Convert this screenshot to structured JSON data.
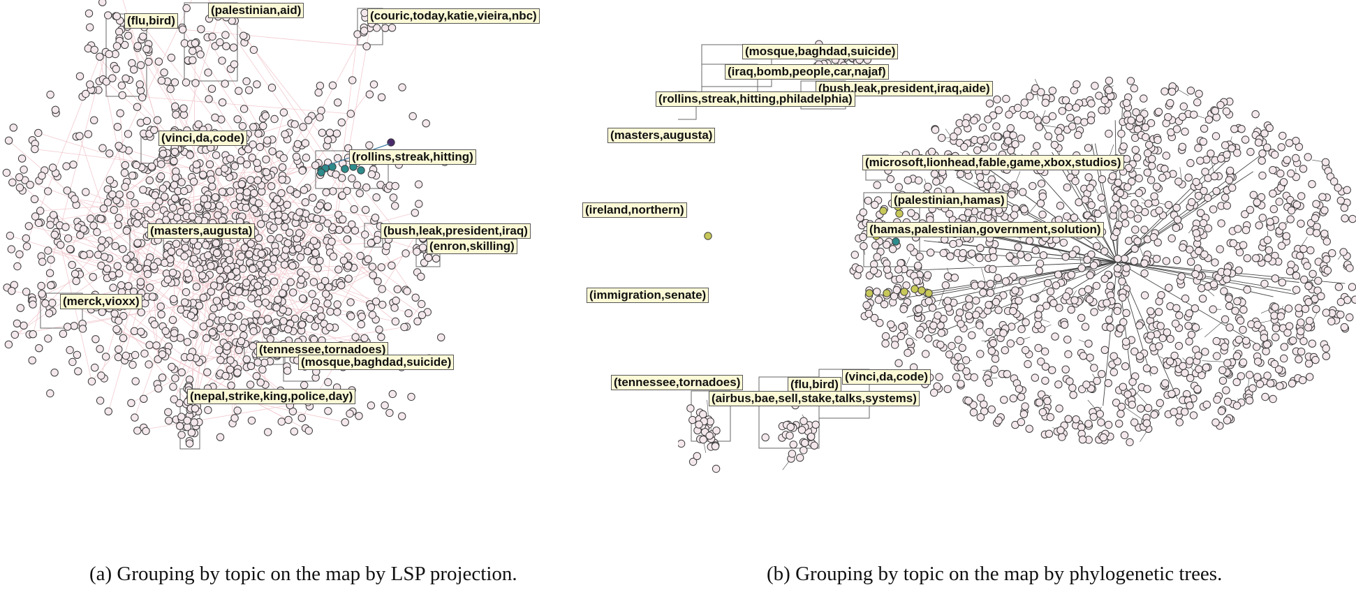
{
  "panels": [
    {
      "id": "a",
      "caption": "(a) Grouping by topic on the map by LSP projection.",
      "topic_labels": [
        "(flu,bird)",
        "(palestinian,aid)",
        "(couric,today,katie,vieira,nbc)",
        "(vinci,da,code)",
        "(rollins,streak,hitting)",
        "(masters,augusta)",
        "(bush,leak,president,iraq)",
        "(enron,skilling)",
        "(merck,vioxx)",
        "(tennessee,tornadoes)",
        "(mosque,baghdad,suicide)",
        "(nepal,strike,king,police,day)"
      ]
    },
    {
      "id": "b",
      "caption": "(b) Grouping by topic on the map by phylogenetic trees.",
      "topic_labels": [
        "(mosque,baghdad,suicide)",
        "(iraq,bomb,people,car,najaf)",
        "(bush,leak,president,iraq,aide)",
        "(rollins,streak,hitting,philadelphia)",
        "(masters,augusta)",
        "(microsoft,lionhead,fable,game,xbox,studios)",
        "(palestinian,hamas)",
        "(ireland,northern)",
        "(hamas,palestinian,government,solution)",
        "(immigration,senate)",
        "(tennessee,tornadoes)",
        "(flu,bird)",
        "(vinci,da,code)",
        "(airbus,bae,sell,stake,talks,systems)"
      ]
    }
  ],
  "colors": {
    "node_fill": "#f4e8ec",
    "node_stroke": "#3a3a3a",
    "edge_light": "#f2c9cf",
    "edge_dark": "#444444",
    "highlight_teal": "#2e8b8b",
    "highlight_yellow": "#c8c85a",
    "highlight_purple": "#4b2a6b",
    "label_bg": "#fbf9d6"
  }
}
